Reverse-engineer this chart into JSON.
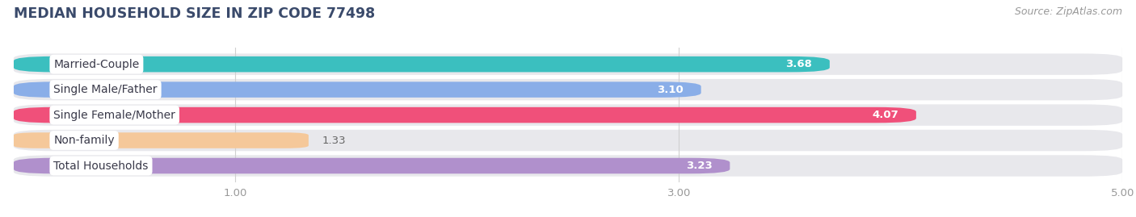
{
  "title": "MEDIAN HOUSEHOLD SIZE IN ZIP CODE 77498",
  "source": "Source: ZipAtlas.com",
  "categories": [
    "Married-Couple",
    "Single Male/Father",
    "Single Female/Mother",
    "Non-family",
    "Total Households"
  ],
  "values": [
    3.68,
    3.1,
    4.07,
    1.33,
    3.23
  ],
  "bar_colors": [
    "#3bbfbf",
    "#8aaee8",
    "#f0507a",
    "#f5c89a",
    "#b090cc"
  ],
  "xlim_max": 5.0,
  "xticks": [
    1.0,
    3.0,
    5.0
  ],
  "bar_height": 0.62,
  "row_bg_color": "#e8e8ec",
  "fig_bg": "#ffffff",
  "title_color": "#3a4a6b",
  "title_fontsize": 12.5,
  "source_fontsize": 9,
  "tick_fontsize": 9.5,
  "cat_fontsize": 10,
  "val_fontsize": 9.5,
  "val_color_inside": "#ffffff",
  "val_color_outside": "#666666",
  "tick_color": "#999999"
}
